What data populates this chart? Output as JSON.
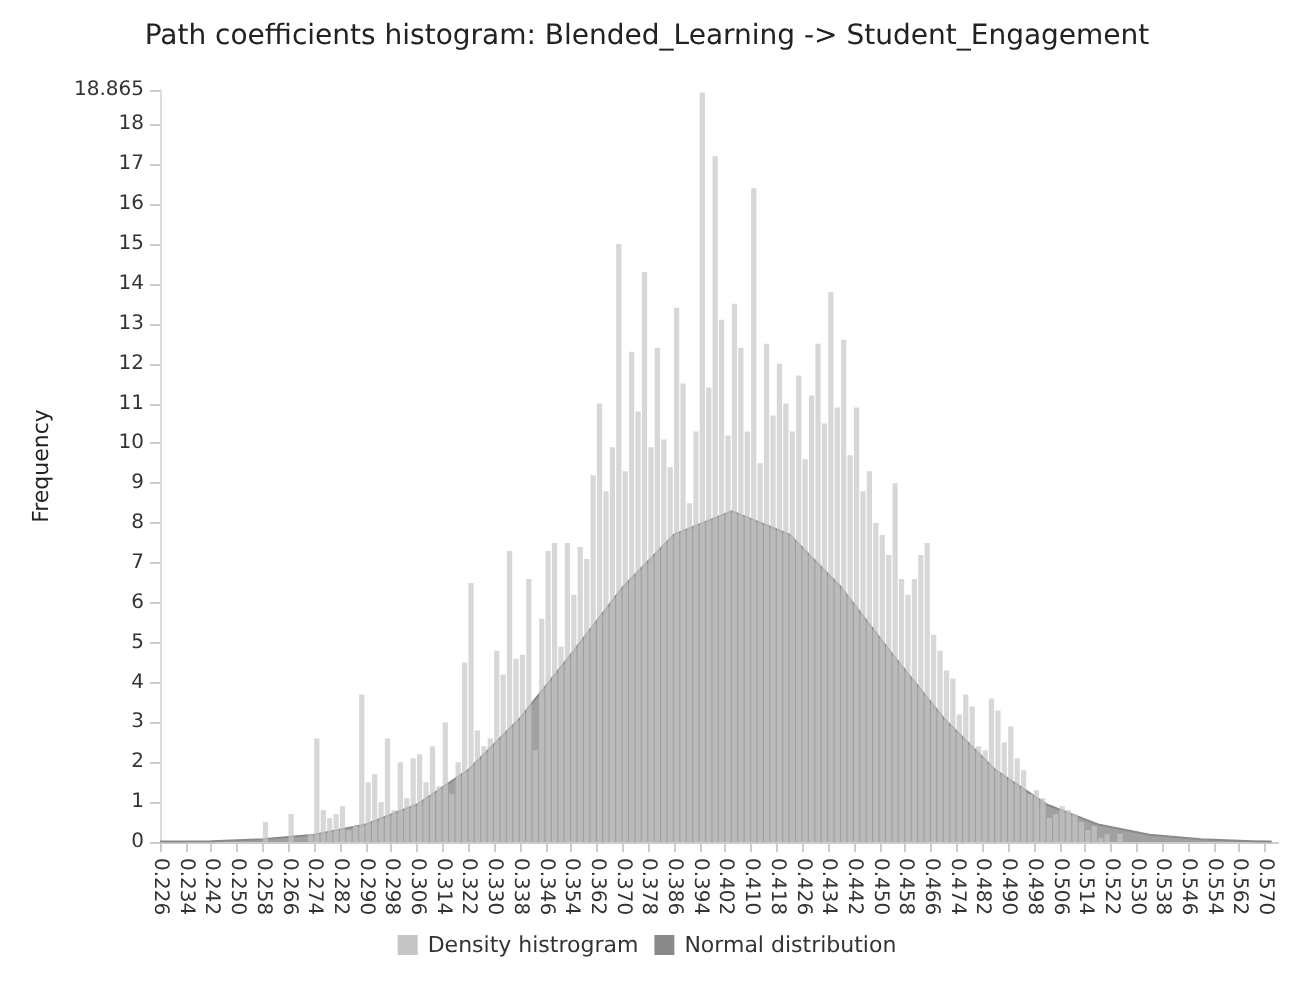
{
  "chart_data": {
    "type": "histogram",
    "title": "Path coefficients histogram: Blended_Learning -> Student_Engagement",
    "ylabel": "Frequency",
    "bins": [
      0.256,
      0.258,
      0.26,
      0.262,
      0.264,
      0.266,
      0.268,
      0.27,
      0.272,
      0.274,
      0.276,
      0.278,
      0.28,
      0.282,
      0.284,
      0.286,
      0.288,
      0.29,
      0.292,
      0.294,
      0.296,
      0.298,
      0.3,
      0.302,
      0.304,
      0.306,
      0.308,
      0.31,
      0.312,
      0.314,
      0.316,
      0.318,
      0.32,
      0.322,
      0.324,
      0.326,
      0.328,
      0.33,
      0.332,
      0.334,
      0.336,
      0.338,
      0.34,
      0.342,
      0.344,
      0.346,
      0.348,
      0.35,
      0.352,
      0.354,
      0.356,
      0.358,
      0.36,
      0.362,
      0.364,
      0.366,
      0.368,
      0.37,
      0.372,
      0.374,
      0.376,
      0.378,
      0.38,
      0.382,
      0.384,
      0.386,
      0.388,
      0.39,
      0.392,
      0.394,
      0.396,
      0.398,
      0.4,
      0.402,
      0.404,
      0.406,
      0.408,
      0.41,
      0.412,
      0.414,
      0.416,
      0.418,
      0.42,
      0.422,
      0.424,
      0.426,
      0.428,
      0.43,
      0.432,
      0.434,
      0.436,
      0.438,
      0.44,
      0.442,
      0.444,
      0.446,
      0.448,
      0.45,
      0.452,
      0.454,
      0.456,
      0.458,
      0.46,
      0.462,
      0.464,
      0.466,
      0.468,
      0.47,
      0.472,
      0.474,
      0.476,
      0.478,
      0.48,
      0.482,
      0.484,
      0.486,
      0.488,
      0.49,
      0.492,
      0.494,
      0.496,
      0.498,
      0.5,
      0.502,
      0.504,
      0.506,
      0.508,
      0.51,
      0.512,
      0.514,
      0.516,
      0.518,
      0.52,
      0.522,
      0.524,
      0.526
    ],
    "series": [
      {
        "name": "Density histrogram",
        "type": "histogram",
        "color": "#c6c6c6",
        "values": [
          0,
          0.5,
          0,
          0,
          0,
          0.7,
          0,
          0,
          0.2,
          2.6,
          0.8,
          0.6,
          0.7,
          0.9,
          0.3,
          0.4,
          3.7,
          1.5,
          1.7,
          1.0,
          2.6,
          0.8,
          2.0,
          1.1,
          2.1,
          2.2,
          1.5,
          2.4,
          1.4,
          3.0,
          1.2,
          2.0,
          4.5,
          6.5,
          2.8,
          2.4,
          2.6,
          4.8,
          4.2,
          7.3,
          4.6,
          4.7,
          6.6,
          2.3,
          5.6,
          7.3,
          7.5,
          4.9,
          7.5,
          6.2,
          7.4,
          7.1,
          9.2,
          11.0,
          8.8,
          9.9,
          15.0,
          9.3,
          12.3,
          10.8,
          14.3,
          9.9,
          12.4,
          10.1,
          9.4,
          13.4,
          11.5,
          8.5,
          10.3,
          18.8,
          11.4,
          17.2,
          13.1,
          10.2,
          13.5,
          12.4,
          10.3,
          16.4,
          9.5,
          12.5,
          10.7,
          12.0,
          11.0,
          10.3,
          11.7,
          9.6,
          11.2,
          12.5,
          10.5,
          13.8,
          10.9,
          12.6,
          9.7,
          10.9,
          8.8,
          9.3,
          8.0,
          7.7,
          7.2,
          9.0,
          6.6,
          6.2,
          6.6,
          7.2,
          7.5,
          5.2,
          4.8,
          4.3,
          4.1,
          3.2,
          3.7,
          3.4,
          2.4,
          2.3,
          3.6,
          3.3,
          2.5,
          2.9,
          2.1,
          1.8,
          1.2,
          1.3,
          1.1,
          0.6,
          0.7,
          0.9,
          0.8,
          0.7,
          0.5,
          0.3,
          0.4,
          0.1,
          0.2,
          0,
          0.2
        ]
      },
      {
        "name": "Normal distribution",
        "type": "area",
        "color": "#8a8a8a",
        "x": [
          0.226,
          0.242,
          0.258,
          0.274,
          0.29,
          0.306,
          0.322,
          0.338,
          0.354,
          0.37,
          0.386,
          0.404,
          0.422,
          0.438,
          0.454,
          0.47,
          0.486,
          0.502,
          0.518,
          0.534,
          0.55,
          0.566,
          0.572
        ],
        "values": [
          0.01,
          0.02,
          0.07,
          0.18,
          0.44,
          0.94,
          1.81,
          3.1,
          4.71,
          6.39,
          7.71,
          8.3,
          7.71,
          6.39,
          4.71,
          3.1,
          1.81,
          0.94,
          0.44,
          0.18,
          0.07,
          0.02,
          0.01
        ]
      }
    ],
    "xlim": [
      0.226,
      0.574
    ],
    "xticks": [
      0.226,
      0.234,
      0.242,
      {
        "value": 0.25,
        "label": "0.250"
      },
      0.258,
      0.266,
      0.274,
      0.282,
      {
        "value": 0.29,
        "label": "0.290"
      },
      0.298,
      0.306,
      0.314,
      0.322,
      {
        "value": 0.33,
        "label": "0.330"
      },
      0.338,
      0.346,
      0.354,
      0.362,
      {
        "value": 0.37,
        "label": "0.370"
      },
      0.378,
      0.386,
      0.394,
      0.402,
      {
        "value": 0.41,
        "label": "0.410"
      },
      0.418,
      0.426,
      0.434,
      0.442,
      {
        "value": 0.45,
        "label": "0.450"
      },
      0.458,
      0.466,
      0.474,
      0.482,
      {
        "value": 0.49,
        "label": "0.490"
      },
      0.498,
      0.506,
      0.514,
      0.522,
      {
        "value": 0.53,
        "label": "0.530"
      },
      0.538,
      0.546,
      0.554,
      0.562,
      {
        "value": 0.57,
        "label": "0.570"
      }
    ],
    "ylim": [
      0,
      18.865
    ],
    "yticks": [
      0,
      1,
      2,
      3,
      4,
      5,
      6,
      7,
      8,
      9,
      10,
      11,
      12,
      13,
      14,
      15,
      16,
      17,
      18,
      18.865
    ],
    "grid": false,
    "legend": "bottom"
  }
}
